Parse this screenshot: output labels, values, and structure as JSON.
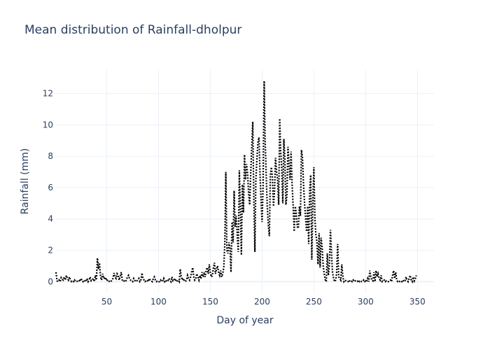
{
  "chart_data": {
    "type": "line",
    "title": "Mean distribution of Rainfall-dholpur",
    "xlabel": "Day of year",
    "ylabel": "Rainfall (mm)",
    "xlim": [
      1,
      366
    ],
    "ylim": [
      -0.7,
      13.5
    ],
    "x_ticks": [
      50,
      100,
      150,
      200,
      250,
      300,
      350
    ],
    "y_ticks": [
      0,
      2,
      4,
      6,
      8,
      10,
      12
    ],
    "grid": true,
    "legend": "none",
    "line_style": "dotted",
    "line_color": "#000000",
    "series": [
      {
        "values": [
          0.6,
          0.05,
          0.0,
          0.1,
          0.0,
          0.25,
          0.15,
          0.1,
          0.3,
          0.1,
          0.4,
          0.2,
          0.1,
          0.3,
          0.1,
          0.0,
          0.05,
          0.0,
          0.1,
          0.0,
          0.0,
          0.05,
          0.1,
          0.0,
          0.2,
          0.1,
          0.0,
          0.1,
          0.05,
          0.0,
          0.2,
          0.0,
          0.1,
          0.3,
          0.05,
          0.1,
          0.2,
          0.0,
          0.4,
          0.1,
          1.5,
          0.8,
          1.2,
          0.3,
          0.1,
          0.5,
          0.2,
          0.3,
          0.1,
          0.2,
          0.0,
          0.0,
          0.05,
          0.0,
          0.1,
          0.2,
          0.55,
          0.3,
          0.2,
          0.5,
          0.4,
          0.1,
          0.3,
          0.6,
          0.1,
          0.0,
          0.05,
          0.0,
          0.1,
          0.3,
          0.4,
          0.2,
          0.1,
          0.05,
          0.0,
          0.2,
          0.1,
          0.0,
          0.05,
          0.1,
          0.2,
          0.0,
          0.1,
          0.55,
          0.2,
          0.1,
          0.0,
          0.05,
          0.1,
          0.0,
          0.2,
          0.1,
          0.05,
          0.0,
          0.2,
          0.3,
          0.1,
          0.0,
          0.05,
          0.0,
          0.0,
          0.1,
          0.0,
          0.05,
          0.2,
          0.0,
          0.1,
          0.0,
          0.05,
          0.2,
          0.1,
          0.0,
          0.3,
          0.05,
          0.1,
          0.2,
          0.0,
          0.05,
          0.1,
          0.0,
          0.8,
          0.3,
          0.1,
          0.2,
          0.05,
          0.0,
          0.1,
          0.4,
          0.2,
          0.1,
          0.3,
          0.6,
          0.9,
          0.3,
          0.1,
          0.2,
          0.5,
          0.3,
          0.1,
          0.4,
          0.2,
          0.6,
          0.3,
          0.5,
          0.3,
          0.7,
          0.9,
          0.5,
          1.1,
          0.6,
          0.3,
          0.4,
          0.9,
          1.2,
          0.5,
          0.8,
          1.0,
          0.6,
          0.4,
          0.7,
          0.3,
          0.5,
          0.9,
          2.5,
          7.0,
          2.0,
          1.8,
          2.5,
          2.2,
          0.6,
          3.8,
          2.5,
          5.8,
          3.5,
          4.2,
          3.0,
          1.9,
          7.1,
          4.8,
          1.7,
          6.2,
          4.4,
          8.1,
          6.5,
          7.5,
          6.9,
          5.6,
          4.9,
          6.8,
          8.5,
          10.2,
          5.3,
          1.9,
          6.5,
          7.8,
          8.9,
          9.2,
          6.8,
          5.2,
          3.8,
          6.2,
          12.8,
          9.0,
          6.8,
          4.8,
          3.6,
          2.9,
          6.8,
          7.3,
          6.6,
          4.8,
          5.8,
          7.9,
          7.0,
          6.5,
          4.9,
          10.4,
          8.3,
          7.2,
          5.0,
          9.1,
          7.8,
          4.9,
          5.5,
          8.6,
          7.5,
          6.5,
          8.3,
          6.2,
          4.8,
          3.2,
          4.8,
          4.4,
          3.5,
          3.4,
          4.8,
          4.2,
          8.4,
          7.9,
          6.2,
          5.0,
          4.1,
          3.2,
          4.8,
          2.4,
          5.9,
          6.8,
          1.4,
          5.1,
          7.3,
          4.0,
          3.0,
          2.5,
          1.1,
          3.1,
          0.9,
          2.8,
          2.2,
          1.0,
          0.5,
          0.1,
          0.0,
          1.8,
          0.4,
          1.1,
          3.3,
          1.9,
          0.6,
          0.2,
          0.0,
          0.1,
          0.5,
          2.4,
          0.3,
          0.2,
          0.1,
          1.1,
          0.3,
          0.0,
          0.1,
          0.05,
          0.0,
          0.0,
          0.1,
          0.0,
          0.05,
          0.0,
          0.1,
          0.0,
          0.05,
          0.0,
          0.0,
          0.1,
          0.0,
          0.05,
          0.0,
          0.0,
          0.1,
          0.0,
          0.05,
          0.0,
          0.2,
          0.0,
          0.7,
          0.3,
          0.1,
          0.05,
          0.6,
          0.0,
          0.7,
          0.3,
          0.5,
          0.2,
          0.1,
          0.4,
          0.0,
          0.05,
          0.1,
          0.0,
          0.05,
          0.0,
          0.0,
          0.05,
          0.1,
          0.0,
          0.4,
          0.7,
          0.2,
          0.6,
          0.1,
          0.0,
          0.05,
          0.0,
          0.05,
          0.0,
          0.1,
          0.0,
          0.05,
          0.3,
          0.1,
          0.0,
          0.2,
          0.4,
          0.1,
          0.0,
          0.3,
          0.05,
          0.2,
          0.4
        ]
      }
    ]
  }
}
